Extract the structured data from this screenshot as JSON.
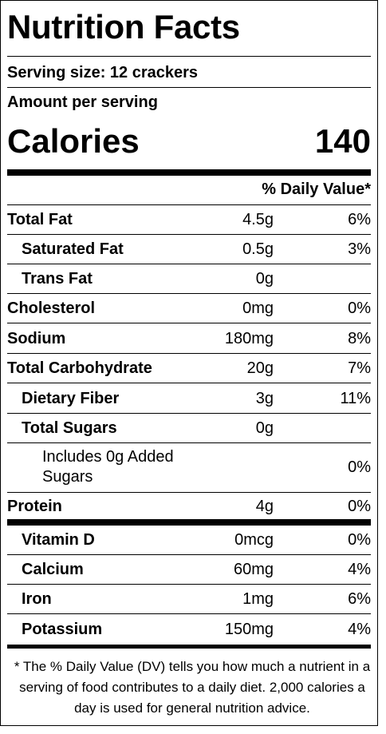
{
  "label": {
    "title": "Nutrition Facts",
    "serving_size": "Serving size: 12 crackers",
    "amount_per_serving": "Amount per serving",
    "calories_label": "Calories",
    "calories_value": "140",
    "dv_header": "% Daily Value*"
  },
  "nutrients": [
    {
      "name": "Total Fat",
      "amount": "4.5g",
      "dv": "6%"
    },
    {
      "name": "Saturated Fat",
      "amount": "0.5g",
      "dv": "3%"
    },
    {
      "name": "Trans Fat",
      "amount": "0g",
      "dv": ""
    },
    {
      "name": "Cholesterol",
      "amount": "0mg",
      "dv": "0%"
    },
    {
      "name": "Sodium",
      "amount": "180mg",
      "dv": "8%"
    },
    {
      "name": "Total Carbohydrate",
      "amount": "20g",
      "dv": "7%"
    },
    {
      "name": "Dietary Fiber",
      "amount": "3g",
      "dv": "11%"
    },
    {
      "name": "Total Sugars",
      "amount": "0g",
      "dv": ""
    },
    {
      "name": "Includes 0g Added Sugars",
      "amount": "",
      "dv": "0%"
    },
    {
      "name": "Protein",
      "amount": "4g",
      "dv": "0%"
    }
  ],
  "vitamins": [
    {
      "name": "Vitamin D",
      "amount": "0mcg",
      "dv": "0%"
    },
    {
      "name": "Calcium",
      "amount": "60mg",
      "dv": "4%"
    },
    {
      "name": "Iron",
      "amount": "1mg",
      "dv": "6%"
    },
    {
      "name": "Potassium",
      "amount": "150mg",
      "dv": "4%"
    }
  ],
  "footnote": "* The % Daily Value (DV) tells you how much a nutrient in a serving of food contributes to a daily diet. 2,000 calories a day is used for general nutrition advice."
}
